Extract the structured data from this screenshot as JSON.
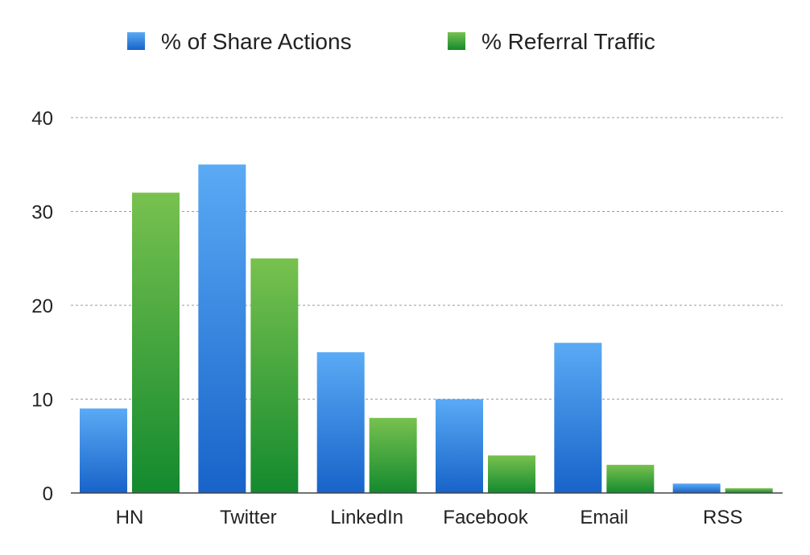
{
  "chart_data": {
    "type": "bar",
    "title": "",
    "xlabel": "",
    "ylabel": "",
    "categories": [
      "HN",
      "Twitter",
      "LinkedIn",
      "Facebook",
      "Email",
      "RSS"
    ],
    "series": [
      {
        "name": "% of Share Actions",
        "values": [
          9,
          35,
          15,
          10,
          16,
          1
        ],
        "color": "#2f7fe0"
      },
      {
        "name": "% Referral Traffic",
        "values": [
          32,
          25,
          8,
          4,
          3,
          0.5
        ],
        "color": "#2e9a3c"
      }
    ],
    "ylim": [
      0,
      40
    ],
    "yticks": [
      0,
      10,
      20,
      30,
      40
    ],
    "grid": true,
    "legend": "top-center"
  }
}
